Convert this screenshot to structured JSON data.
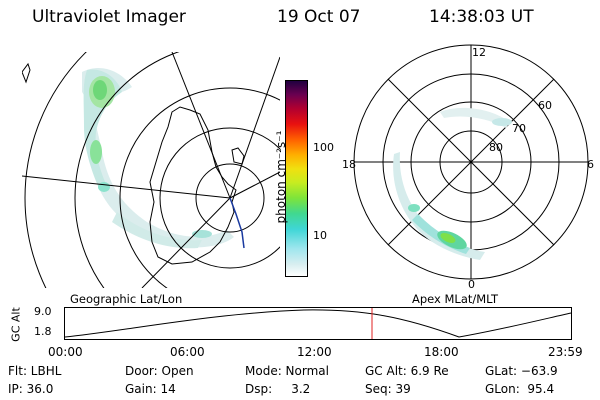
{
  "header": {
    "instrument": "Ultraviolet Imager",
    "date": "19 Oct 07",
    "time": "14:38:03 UT"
  },
  "colorbar": {
    "unit_label": "photon cm⁻²s⁻¹",
    "ticks": [
      "100",
      "10"
    ]
  },
  "geo_panel": {
    "label": "Geographic Lat/Lon"
  },
  "polar_panel": {
    "label": "Apex MLat/MLT",
    "lat_labels": [
      "60",
      "70",
      "80"
    ],
    "mlt_labels": {
      "top": "12",
      "bottom": "0",
      "left": "18",
      "right": "6"
    }
  },
  "altitude_plot": {
    "ylabel": "GC Alt",
    "yticks": [
      "9.0",
      "1.8"
    ],
    "xticks": [
      "00:00",
      "06:00",
      "12:00",
      "18:00",
      "23:59"
    ],
    "current_marker_time": "14:38"
  },
  "status": {
    "filter": "Flt: LBHL",
    "ip": "IP: 36.0",
    "door": "Door: Open",
    "gain": "Gain: 14",
    "mode": "Mode: Normal",
    "dsp": "Dsp:     3.2",
    "gc_alt": "GC Alt: 6.9 Re",
    "seq": "Seq: 39",
    "glat": "GLat: −63.9",
    "glon": "GLon:  95.4"
  }
}
